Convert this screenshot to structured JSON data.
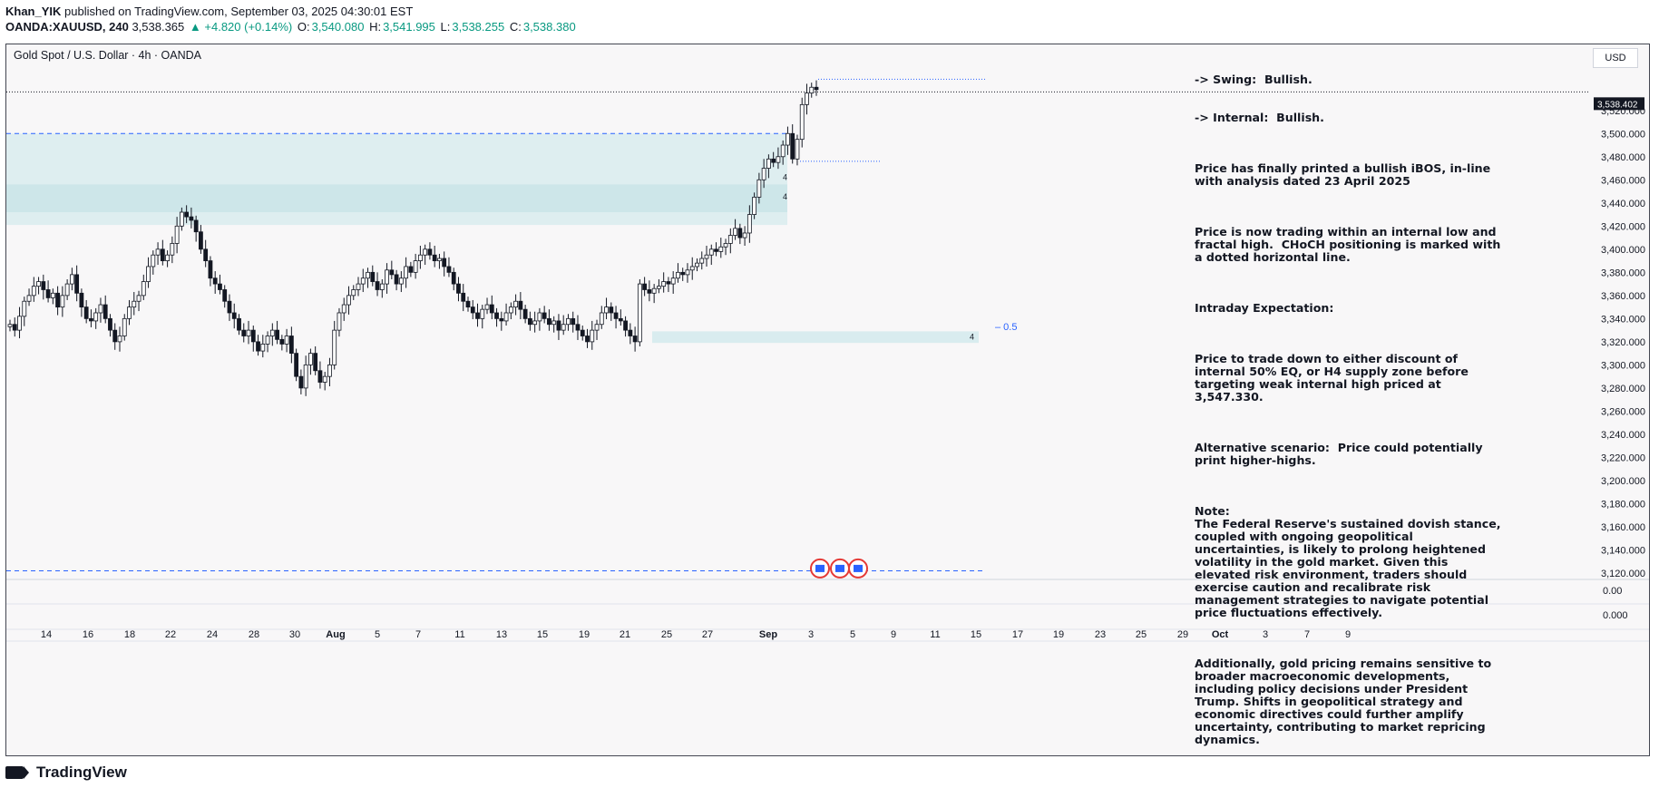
{
  "header": {
    "author": "Khan_YIK",
    "published_text": "published on TradingView.com, September 03, 2025 04:30:01 EST",
    "symbol": "OANDA:XAUUSD, 240",
    "last_price": "3,538.365",
    "change": "▲ +4.820 (+0.14%)",
    "o_label": "O:",
    "o_value": "3,540.080",
    "h_label": "H:",
    "h_value": "3,541.995",
    "l_label": "L:",
    "l_value": "3,538.255",
    "c_label": "C:",
    "c_value": "3,538.380"
  },
  "chart": {
    "title": "Gold Spot / U.S. Dollar · 4h · OANDA",
    "currency": "USD",
    "price_label": "3,538.402",
    "colors": {
      "up": "#131722",
      "down": "#131722",
      "zone": "#cfe6ea",
      "dashed": "#2962ff",
      "bg": "#f8f7f8"
    }
  },
  "analysis": {
    "line1": "-> Swing:  Bullish.",
    "line2": "-> Internal:  Bullish.",
    "p1": "Price has finally printed a bullish iBOS, in-line with analysis dated 23 April 2025",
    "p2": "Price is now trading within an internal low and fractal high.  CHoCH positioning is marked with a dotted horizontal line.",
    "p3": "Intraday Expectation:",
    "p4": "Price to trade down to either discount of internal 50% EQ, or H4 supply zone before targeting weak internal high priced at 3,547.330.",
    "p5": "Alternative scenario:  Price could potentially print higher-highs.",
    "p6": "Note:\nThe Federal Reserve's sustained dovish stance, coupled with ongoing geopolitical uncertainties, is likely to prolong heightened volatility in the gold market. Given this elevated risk environment, traders should exercise caution and recalibrate risk management strategies to navigate potential price fluctuations effectively.",
    "p7": "Additionally, gold pricing remains sensitive to broader macroeconomic developments, including policy decisions under President Trump. Shifts in geopolitical strategy and economic directives could further amplify uncertainty, contributing to market repricing dynamics."
  },
  "annotations": {
    "fib_label": "– 0.5",
    "zone_label": "4"
  },
  "footer": {
    "brand": "TradingView"
  },
  "chart_data": {
    "type": "candlestick",
    "title": "Gold Spot / U.S. Dollar · 4h · OANDA",
    "y_ticks": [
      "3,520.000",
      "3,500.000",
      "3,480.000",
      "3,460.000",
      "3,440.000",
      "3,420.000",
      "3,400.000",
      "3,380.000",
      "3,360.000",
      "3,340.000",
      "3,320.000",
      "3,300.000",
      "3,280.000",
      "3,260.000",
      "3,240.000",
      "3,220.000",
      "3,200.000",
      "3,180.000",
      "3,160.000",
      "3,140.000",
      "3,120.000"
    ],
    "y_tick_values": [
      3520,
      3500,
      3480,
      3460,
      3440,
      3420,
      3400,
      3380,
      3360,
      3340,
      3320,
      3300,
      3280,
      3260,
      3240,
      3220,
      3200,
      3180,
      3160,
      3140,
      3120
    ],
    "sub_ticks": [
      "0.00",
      "0.000"
    ],
    "x_ticks": [
      "14",
      "16",
      "18",
      "22",
      "24",
      "28",
      "30",
      "Aug",
      "5",
      "7",
      "11",
      "13",
      "15",
      "19",
      "21",
      "25",
      "27",
      "Sep",
      "3",
      "5",
      "9",
      "11",
      "15",
      "17",
      "19",
      "23",
      "25",
      "29",
      "Oct",
      "3",
      "7",
      "9"
    ],
    "ylim": [
      3110,
      3550
    ],
    "close_series": [
      3335,
      3330,
      3342,
      3355,
      3360,
      3368,
      3372,
      3365,
      3358,
      3362,
      3350,
      3360,
      3370,
      3378,
      3362,
      3350,
      3340,
      3338,
      3345,
      3352,
      3340,
      3330,
      3320,
      3325,
      3340,
      3350,
      3355,
      3360,
      3372,
      3385,
      3395,
      3400,
      3390,
      3395,
      3405,
      3420,
      3432,
      3428,
      3425,
      3415,
      3400,
      3390,
      3375,
      3370,
      3365,
      3355,
      3345,
      3340,
      3330,
      3325,
      3330,
      3320,
      3312,
      3318,
      3325,
      3330,
      3322,
      3318,
      3325,
      3310,
      3290,
      3280,
      3300,
      3310,
      3295,
      3285,
      3290,
      3300,
      3330,
      3345,
      3352,
      3360,
      3365,
      3370,
      3375,
      3380,
      3372,
      3365,
      3370,
      3382,
      3378,
      3370,
      3375,
      3385,
      3380,
      3390,
      3395,
      3400,
      3395,
      3390,
      3392,
      3385,
      3380,
      3370,
      3362,
      3355,
      3350,
      3345,
      3340,
      3348,
      3352,
      3345,
      3340,
      3338,
      3345,
      3350,
      3355,
      3348,
      3340,
      3335,
      3338,
      3345,
      3340,
      3335,
      3338,
      3330,
      3335,
      3340,
      3335,
      3330,
      3325,
      3320,
      3330,
      3335,
      3345,
      3350,
      3345,
      3340,
      3338,
      3330,
      3325,
      3320,
      3370,
      3365,
      3362,
      3366,
      3368,
      3372,
      3370,
      3375,
      3380,
      3378,
      3382,
      3385,
      3388,
      3392,
      3395,
      3400,
      3398,
      3402,
      3405,
      3412,
      3418,
      3410,
      3414,
      3430,
      3445,
      3460,
      3470,
      3478,
      3475,
      3480,
      3490,
      3500,
      3478,
      3495,
      3525,
      3535,
      3540,
      3538
    ]
  }
}
